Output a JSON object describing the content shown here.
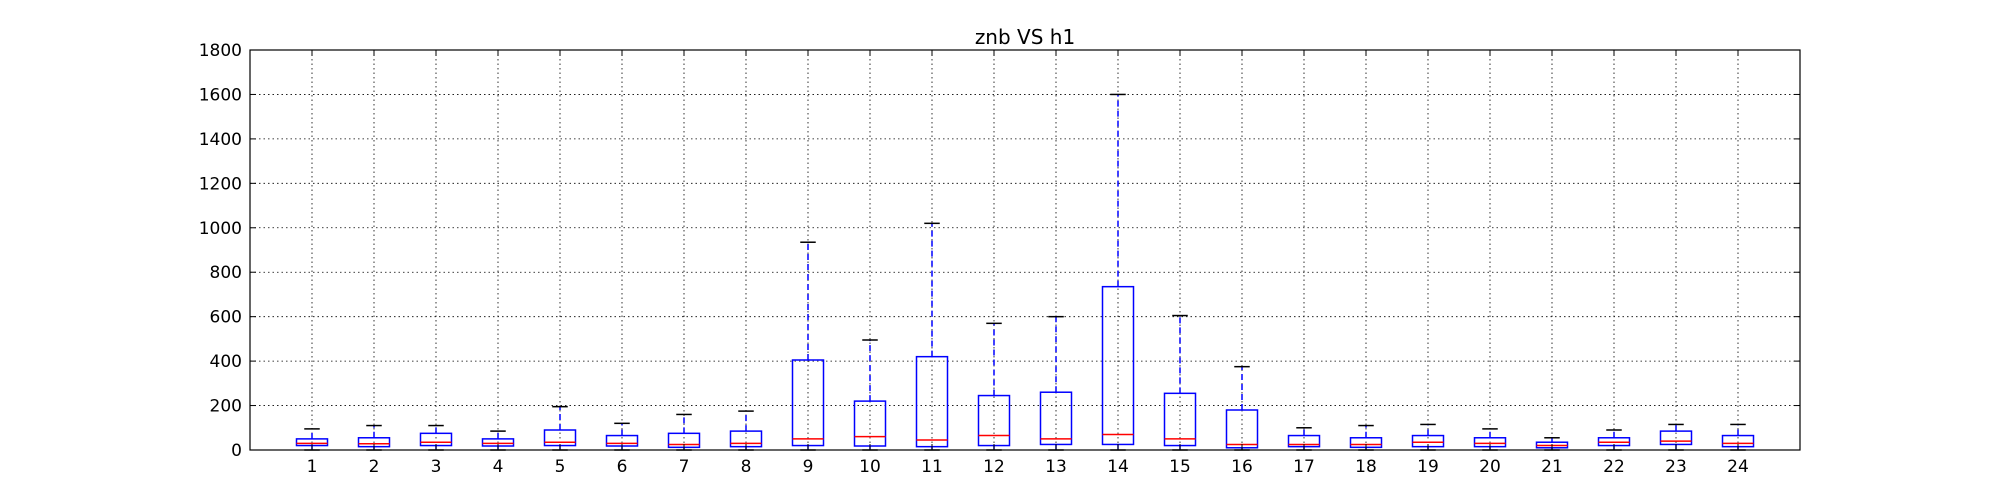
{
  "chart_data": {
    "type": "boxplot",
    "title": "znb VS h1",
    "xlabel": "",
    "ylabel": "",
    "ylim": [
      0,
      1800
    ],
    "yticks": [
      0,
      200,
      400,
      600,
      800,
      1000,
      1200,
      1400,
      1600,
      1800
    ],
    "grid": true,
    "categories": [
      "1",
      "2",
      "3",
      "4",
      "5",
      "6",
      "7",
      "8",
      "9",
      "10",
      "11",
      "12",
      "13",
      "14",
      "15",
      "16",
      "17",
      "18",
      "19",
      "20",
      "21",
      "22",
      "23",
      "24"
    ],
    "boxes": [
      {
        "min": 0,
        "q1": 20,
        "median": 30,
        "q3": 50,
        "max": 95
      },
      {
        "min": 0,
        "q1": 15,
        "median": 28,
        "q3": 55,
        "max": 110
      },
      {
        "min": 0,
        "q1": 20,
        "median": 35,
        "q3": 75,
        "max": 110
      },
      {
        "min": 0,
        "q1": 18,
        "median": 30,
        "q3": 50,
        "max": 85
      },
      {
        "min": 0,
        "q1": 20,
        "median": 35,
        "q3": 90,
        "max": 195
      },
      {
        "min": 0,
        "q1": 18,
        "median": 30,
        "q3": 65,
        "max": 120
      },
      {
        "min": 0,
        "q1": 12,
        "median": 25,
        "q3": 75,
        "max": 160
      },
      {
        "min": 0,
        "q1": 15,
        "median": 30,
        "q3": 85,
        "max": 175
      },
      {
        "min": 0,
        "q1": 20,
        "median": 50,
        "q3": 405,
        "max": 935
      },
      {
        "min": 0,
        "q1": 18,
        "median": 60,
        "q3": 220,
        "max": 495
      },
      {
        "min": 0,
        "q1": 15,
        "median": 45,
        "q3": 420,
        "max": 1020
      },
      {
        "min": 0,
        "q1": 20,
        "median": 65,
        "q3": 245,
        "max": 570
      },
      {
        "min": 0,
        "q1": 25,
        "median": 50,
        "q3": 260,
        "max": 600
      },
      {
        "min": 0,
        "q1": 25,
        "median": 70,
        "q3": 735,
        "max": 1600
      },
      {
        "min": 0,
        "q1": 20,
        "median": 50,
        "q3": 255,
        "max": 605
      },
      {
        "min": 0,
        "q1": 10,
        "median": 25,
        "q3": 180,
        "max": 375
      },
      {
        "min": 0,
        "q1": 15,
        "median": 25,
        "q3": 65,
        "max": 100
      },
      {
        "min": 0,
        "q1": 12,
        "median": 25,
        "q3": 55,
        "max": 110
      },
      {
        "min": 0,
        "q1": 15,
        "median": 35,
        "q3": 65,
        "max": 115
      },
      {
        "min": 0,
        "q1": 15,
        "median": 30,
        "q3": 55,
        "max": 95
      },
      {
        "min": 0,
        "q1": 10,
        "median": 20,
        "q3": 35,
        "max": 55
      },
      {
        "min": 0,
        "q1": 20,
        "median": 35,
        "q3": 55,
        "max": 90
      },
      {
        "min": 0,
        "q1": 25,
        "median": 40,
        "q3": 85,
        "max": 115
      },
      {
        "min": 0,
        "q1": 15,
        "median": 30,
        "q3": 65,
        "max": 115
      }
    ],
    "colors": {
      "box": "#0000ff",
      "median": "#ff0000",
      "whisker": "#0000ff",
      "cap": "#000000",
      "grid": "#000000",
      "axis": "#000000"
    }
  }
}
